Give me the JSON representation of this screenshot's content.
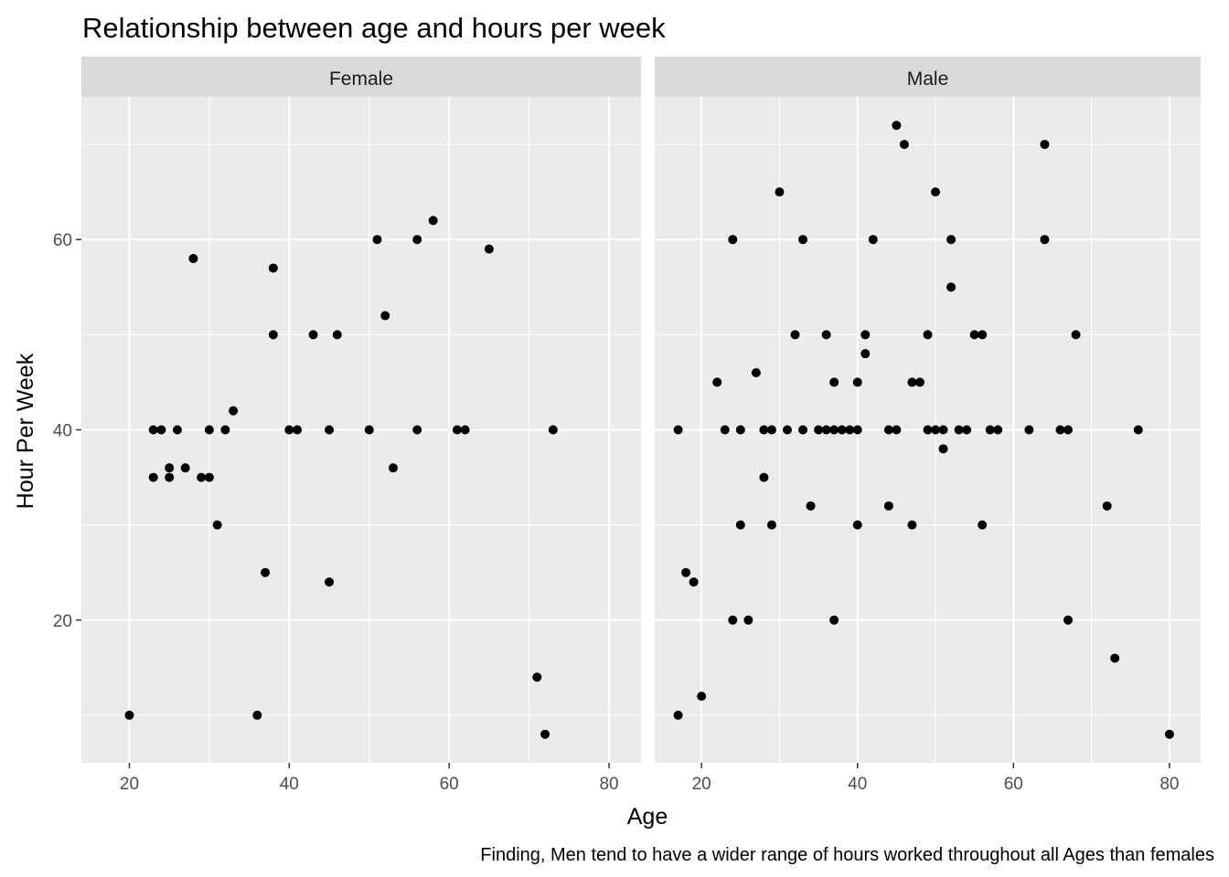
{
  "chart_data": {
    "type": "scatter",
    "title": "Relationship between age and hours per week",
    "xlabel": "Age",
    "ylabel": "Hour Per Week",
    "caption": "Finding, Men tend to have a wider range of hours worked throughout all Ages than females",
    "xlim": [
      14,
      84
    ],
    "ylim": [
      5,
      75
    ],
    "x_ticks": [
      20,
      40,
      60,
      80
    ],
    "y_ticks": [
      20,
      40,
      60
    ],
    "grid": true,
    "panel_background": "#ebebeb",
    "strip_background": "#d9d9d9",
    "grid_color": "#ffffff",
    "point_color": "#000000",
    "facets": [
      {
        "name": "Female",
        "points": [
          [
            20,
            10
          ],
          [
            23,
            35
          ],
          [
            23,
            40
          ],
          [
            24,
            40
          ],
          [
            25,
            36
          ],
          [
            25,
            35
          ],
          [
            26,
            40
          ],
          [
            27,
            36
          ],
          [
            28,
            58
          ],
          [
            29,
            35
          ],
          [
            30,
            35
          ],
          [
            30,
            40
          ],
          [
            31,
            30
          ],
          [
            32,
            40
          ],
          [
            33,
            42
          ],
          [
            36,
            10
          ],
          [
            37,
            25
          ],
          [
            38,
            57
          ],
          [
            38,
            50
          ],
          [
            40,
            40
          ],
          [
            41,
            40
          ],
          [
            43,
            50
          ],
          [
            45,
            40
          ],
          [
            45,
            24
          ],
          [
            46,
            50
          ],
          [
            50,
            40
          ],
          [
            51,
            60
          ],
          [
            52,
            52
          ],
          [
            53,
            36
          ],
          [
            56,
            60
          ],
          [
            56,
            40
          ],
          [
            58,
            62
          ],
          [
            61,
            40
          ],
          [
            62,
            40
          ],
          [
            65,
            59
          ],
          [
            71,
            14
          ],
          [
            72,
            8
          ],
          [
            73,
            40
          ]
        ]
      },
      {
        "name": "Male",
        "points": [
          [
            17,
            40
          ],
          [
            17,
            10
          ],
          [
            18,
            25
          ],
          [
            19,
            24
          ],
          [
            20,
            12
          ],
          [
            22,
            45
          ],
          [
            23,
            40
          ],
          [
            24,
            60
          ],
          [
            24,
            20
          ],
          [
            25,
            40
          ],
          [
            25,
            30
          ],
          [
            26,
            20
          ],
          [
            27,
            46
          ],
          [
            28,
            40
          ],
          [
            28,
            35
          ],
          [
            29,
            40
          ],
          [
            29,
            30
          ],
          [
            30,
            65
          ],
          [
            31,
            40
          ],
          [
            32,
            50
          ],
          [
            33,
            60
          ],
          [
            33,
            40
          ],
          [
            34,
            32
          ],
          [
            35,
            40
          ],
          [
            36,
            50
          ],
          [
            36,
            40
          ],
          [
            37,
            45
          ],
          [
            37,
            40
          ],
          [
            37,
            20
          ],
          [
            38,
            40
          ],
          [
            39,
            40
          ],
          [
            40,
            45
          ],
          [
            40,
            40
          ],
          [
            40,
            30
          ],
          [
            41,
            50
          ],
          [
            41,
            48
          ],
          [
            42,
            60
          ],
          [
            44,
            40
          ],
          [
            44,
            32
          ],
          [
            45,
            72
          ],
          [
            45,
            40
          ],
          [
            46,
            70
          ],
          [
            47,
            45
          ],
          [
            47,
            30
          ],
          [
            48,
            45
          ],
          [
            49,
            50
          ],
          [
            49,
            40
          ],
          [
            50,
            65
          ],
          [
            50,
            40
          ],
          [
            51,
            40
          ],
          [
            51,
            38
          ],
          [
            52,
            60
          ],
          [
            52,
            55
          ],
          [
            53,
            40
          ],
          [
            54,
            40
          ],
          [
            55,
            50
          ],
          [
            56,
            50
          ],
          [
            56,
            30
          ],
          [
            57,
            40
          ],
          [
            58,
            40
          ],
          [
            62,
            40
          ],
          [
            64,
            70
          ],
          [
            64,
            60
          ],
          [
            66,
            40
          ],
          [
            67,
            40
          ],
          [
            67,
            20
          ],
          [
            68,
            50
          ],
          [
            72,
            32
          ],
          [
            73,
            16
          ],
          [
            76,
            40
          ],
          [
            80,
            8
          ]
        ]
      }
    ]
  }
}
